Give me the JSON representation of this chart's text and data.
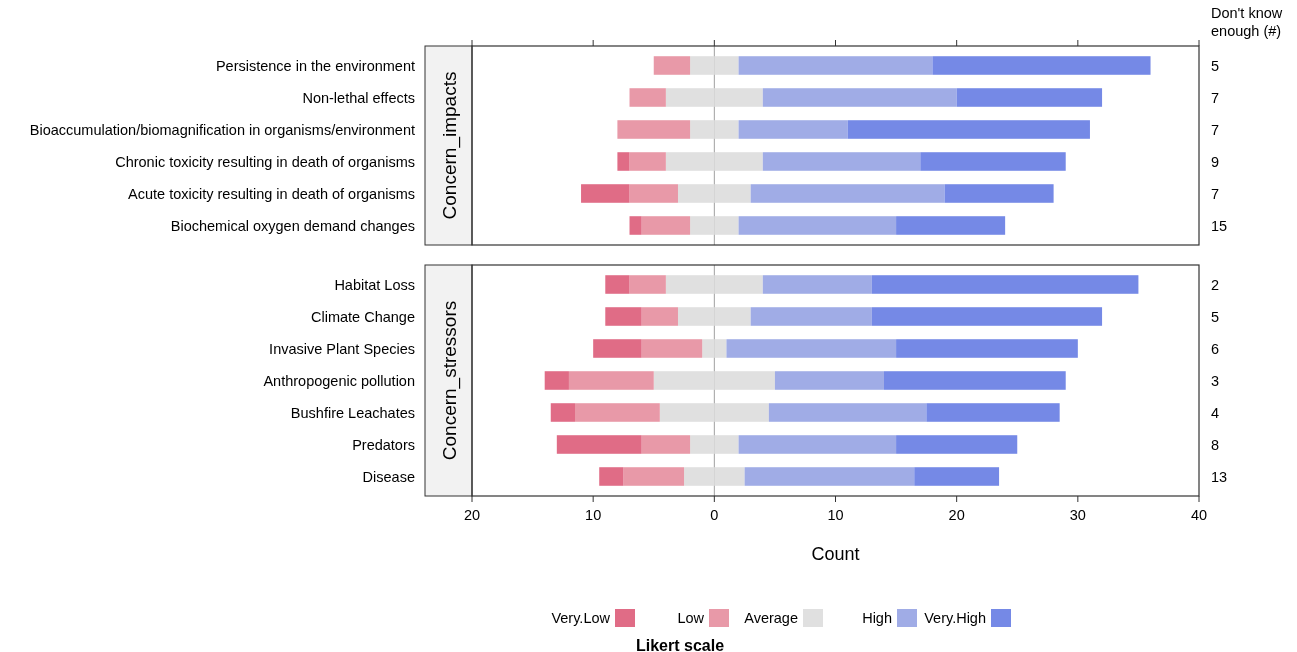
{
  "chart_data": [
    {
      "type": "bar",
      "orientation": "horizontal",
      "stacked": true,
      "title": "Concern_impacts",
      "categories": [
        "Persistence in the environment",
        "Non-lethal effects",
        "Bioaccumulation/biomagnification in organisms/environment",
        "Chronic toxicity resulting in death of organisms",
        "Acute toxicity resulting in death of organisms",
        "Biochemical oxygen demand changes"
      ],
      "series": [
        {
          "color": "#e0e0e0",
          "values": [
            -2,
            -4,
            -2,
            -4,
            -3,
            -2
          ]
        },
        {
          "color": "#e0e0e0",
          "values": [
            2,
            4,
            2,
            4,
            3,
            2
          ]
        },
        {
          "color": "#e899a8",
          "values": [
            -3,
            -3,
            -6,
            -3,
            -4,
            -4
          ]
        },
        {
          "color": "#e06c86",
          "values": [
            0,
            0,
            0,
            -1,
            -4,
            -1
          ]
        },
        {
          "color": "#a0ace6",
          "values": [
            16,
            16,
            9,
            13,
            16,
            13
          ]
        },
        {
          "color": "#7589e6",
          "values": [
            18,
            12,
            20,
            12,
            9,
            9
          ]
        }
      ],
      "xlim": [
        -20,
        40
      ],
      "tick_labels": "y",
      "ref_lines": [
        {
          "axis": "x",
          "value": 0,
          "color": "#a0a0a0"
        }
      ],
      "annotations": [
        "Don't know enough (#)",
        "5",
        "7",
        "7",
        "9",
        "7",
        "15"
      ]
    },
    {
      "type": "bar",
      "orientation": "horizontal",
      "stacked": true,
      "title": "Concern_stressors",
      "xlabel": "Count",
      "legend_title": "Likert scale",
      "legend": "bottom",
      "categories": [
        "Habitat Loss",
        "Climate Change",
        "Invasive Plant Species",
        "Anthropogenic pollution",
        "Bushfire Leachates",
        "Predators",
        "Disease"
      ],
      "series": [
        {
          "color": "#e0e0e0",
          "values": [
            -4,
            -3,
            -1,
            -5,
            -4.5,
            -2,
            -2.5
          ]
        },
        {
          "name": "Average",
          "color": "#e0e0e0",
          "values": [
            4,
            3,
            1,
            5,
            4.5,
            2,
            2.5
          ]
        },
        {
          "name": "Low",
          "color": "#e899a8",
          "values": [
            -3,
            -3,
            -5,
            -7,
            -7,
            -4,
            -5
          ]
        },
        {
          "name": "Very.Low",
          "color": "#e06c86",
          "values": [
            -2,
            -3,
            -4,
            -2,
            -2,
            -7,
            -2
          ]
        },
        {
          "name": "High",
          "color": "#a0ace6",
          "values": [
            9,
            10,
            14,
            9,
            13,
            13,
            14
          ]
        },
        {
          "name": "Very.High",
          "color": "#7589e6",
          "values": [
            22,
            19,
            15,
            15,
            11,
            10,
            7
          ]
        }
      ],
      "xlim": [
        -20,
        40
      ],
      "xticks": [
        {
          "value": -20,
          "label": "20"
        },
        {
          "value": -10,
          "label": "10"
        },
        0,
        10,
        20,
        30,
        40
      ],
      "ref_lines": [
        {
          "axis": "x",
          "value": 0,
          "color": "#a0a0a0"
        }
      ],
      "annotations": [
        "2",
        "5",
        "6",
        "3",
        "4",
        "8",
        "13"
      ]
    }
  ]
}
